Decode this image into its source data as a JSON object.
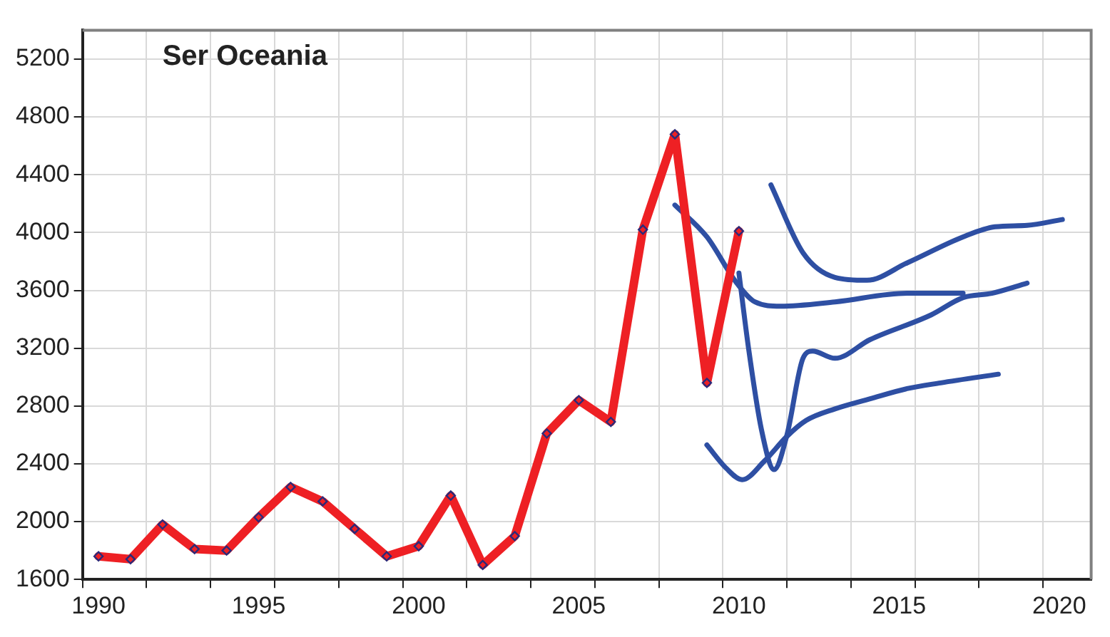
{
  "chart_data": {
    "type": "line",
    "title": "Ser Oceania",
    "xlim": [
      1989.5,
      2021.0
    ],
    "ylim": [
      1600,
      5400
    ],
    "xticks": [
      {
        "value": 1989.5,
        "label": null
      },
      {
        "value": 1991.5,
        "label": null
      },
      {
        "value": 1993.5,
        "label": null
      },
      {
        "value": 1995.5,
        "label": null
      },
      {
        "value": 1997.5,
        "label": null
      },
      {
        "value": 1999.5,
        "label": null
      },
      {
        "value": 2001.5,
        "label": null
      },
      {
        "value": 2003.5,
        "label": null
      },
      {
        "value": 2005.5,
        "label": null
      },
      {
        "value": 2007.5,
        "label": null
      },
      {
        "value": 2009.5,
        "label": null
      },
      {
        "value": 2011.5,
        "label": null
      },
      {
        "value": 2013.5,
        "label": null
      },
      {
        "value": 2015.5,
        "label": null
      },
      {
        "value": 2017.5,
        "label": null
      },
      {
        "value": 2019.5,
        "label": null
      },
      1990,
      1995,
      2000,
      2005,
      2010,
      2015,
      2020
    ],
    "yticks": [
      1600,
      2000,
      2400,
      2800,
      3200,
      3600,
      4000,
      4400,
      4800,
      5200
    ],
    "grid": true,
    "legend": false,
    "series": [
      {
        "color": "#ee2024",
        "marker": "diamond",
        "x": [
          1990,
          1991,
          1992,
          1993,
          1994,
          1995,
          1996,
          1997,
          1998,
          1999,
          2000,
          2001,
          2002,
          2003,
          2004,
          2005,
          2006,
          2007,
          2008,
          2009,
          2010
        ],
        "values": [
          1760,
          1740,
          1980,
          1810,
          1800,
          2030,
          2240,
          2140,
          1950,
          1760,
          1830,
          2180,
          1700,
          1900,
          2610,
          2840,
          2690,
          4020,
          4680,
          2960,
          4010
        ]
      },
      {
        "color": "#2e4fa3",
        "marker": "none",
        "x": [
          2008.0,
          2009.0,
          2009.9,
          2010.5,
          2011.3,
          2013.0,
          2015.25,
          2017.0
        ],
        "values": [
          4190,
          3970,
          3660,
          3520,
          3490,
          3520,
          3580,
          3580
        ]
      },
      {
        "color": "#2e4fa3",
        "marker": "none",
        "x": [
          2011.0,
          2012.0,
          2013.0,
          2014.0,
          2015.25,
          2017.0,
          2018.0,
          2019.0,
          2020.1
        ],
        "values": [
          4330,
          3860,
          3690,
          3670,
          3790,
          3970,
          4040,
          4050,
          4090
        ]
      },
      {
        "color": "#2e4fa3",
        "marker": "none",
        "x": [
          2010.0,
          2010.3,
          2010.7,
          2011.1,
          2011.5,
          2012.0,
          2012.3,
          2013.0,
          2014.1,
          2016.0,
          2017.0,
          2017.9,
          2019.0
        ],
        "values": [
          3720,
          3200,
          2640,
          2360,
          2600,
          3130,
          3180,
          3130,
          3260,
          3430,
          3550,
          3580,
          3650
        ]
      },
      {
        "color": "#2e4fa3",
        "marker": "none",
        "x": [
          2009.0,
          2009.6,
          2010.1,
          2010.8,
          2011.5,
          2012.1,
          2013.0,
          2014.1,
          2015.25,
          2016.3,
          2018.1
        ],
        "values": [
          2530,
          2370,
          2290,
          2420,
          2590,
          2700,
          2780,
          2850,
          2920,
          2960,
          3020
        ]
      }
    ]
  }
}
